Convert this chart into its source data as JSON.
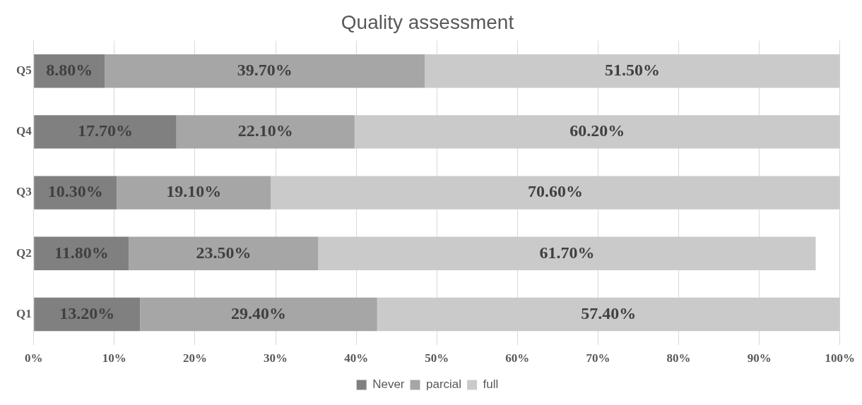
{
  "chart_data": {
    "type": "bar",
    "orientation": "horizontal",
    "stacked": true,
    "title": "Quality assessment",
    "categories": [
      "Q5",
      "Q4",
      "Q3",
      "Q2",
      "Q1"
    ],
    "series": [
      {
        "name": "Never",
        "color": "#808080",
        "values": [
          8.8,
          17.7,
          10.3,
          11.8,
          13.2
        ],
        "value_labels": [
          "8.80%",
          "17.70%",
          "10.30%",
          "11.80%",
          "13.20%"
        ]
      },
      {
        "name": "parcial",
        "color": "#a6a6a6",
        "values": [
          39.7,
          22.1,
          19.1,
          23.5,
          29.4
        ],
        "value_labels": [
          "39.70%",
          "22.10%",
          "19.10%",
          "23.50%",
          "29.40%"
        ]
      },
      {
        "name": "full",
        "color": "#cacaca",
        "values": [
          51.5,
          60.2,
          70.6,
          61.7,
          57.4
        ],
        "value_labels": [
          "51.50%",
          "60.20%",
          "70.60%",
          "61.70%",
          "57.40%"
        ]
      }
    ],
    "xlim": [
      0,
      100
    ],
    "xticks": [
      {
        "value": 0,
        "label": "0%"
      },
      {
        "value": 10,
        "label": "10%"
      },
      {
        "value": 20,
        "label": "20%"
      },
      {
        "value": 30,
        "label": "30%"
      },
      {
        "value": 40,
        "label": "40%"
      },
      {
        "value": 50,
        "label": "50%"
      },
      {
        "value": 60,
        "label": "60%"
      },
      {
        "value": 70,
        "label": "70%"
      },
      {
        "value": 80,
        "label": "80%"
      },
      {
        "value": 90,
        "label": "90%"
      },
      {
        "value": 100,
        "label": "100%"
      }
    ],
    "grid": "x",
    "legend": "bottom"
  }
}
